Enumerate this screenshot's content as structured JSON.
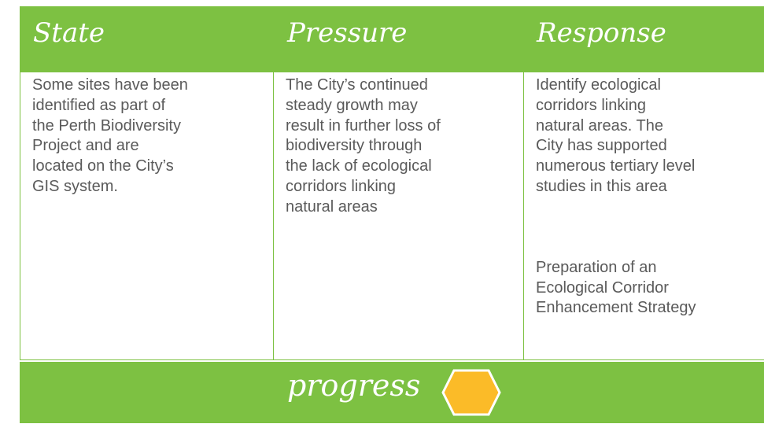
{
  "header": {
    "columns": [
      "State",
      "Pressure",
      "Response"
    ]
  },
  "cells": [
    [
      [
        "Some sites have been",
        "identified as part of",
        "the Perth Biodiversity",
        "Project and are",
        "located on the City’s",
        "GIS system."
      ]
    ],
    [
      [
        "The City’s continued",
        "steady growth may",
        "result in further loss of",
        "biodiversity through",
        "the lack of ecological",
        "corridors linking",
        "natural areas"
      ]
    ],
    [
      [
        "Identify ecological",
        "corridors linking",
        "natural areas. The",
        "City has supported",
        "numerous tertiary level",
        "studies in this area"
      ],
      [
        "Preparation of an",
        "Ecological Corridor",
        "Enhancement Strategy"
      ]
    ]
  ],
  "footer": {
    "label": "progress"
  }
}
